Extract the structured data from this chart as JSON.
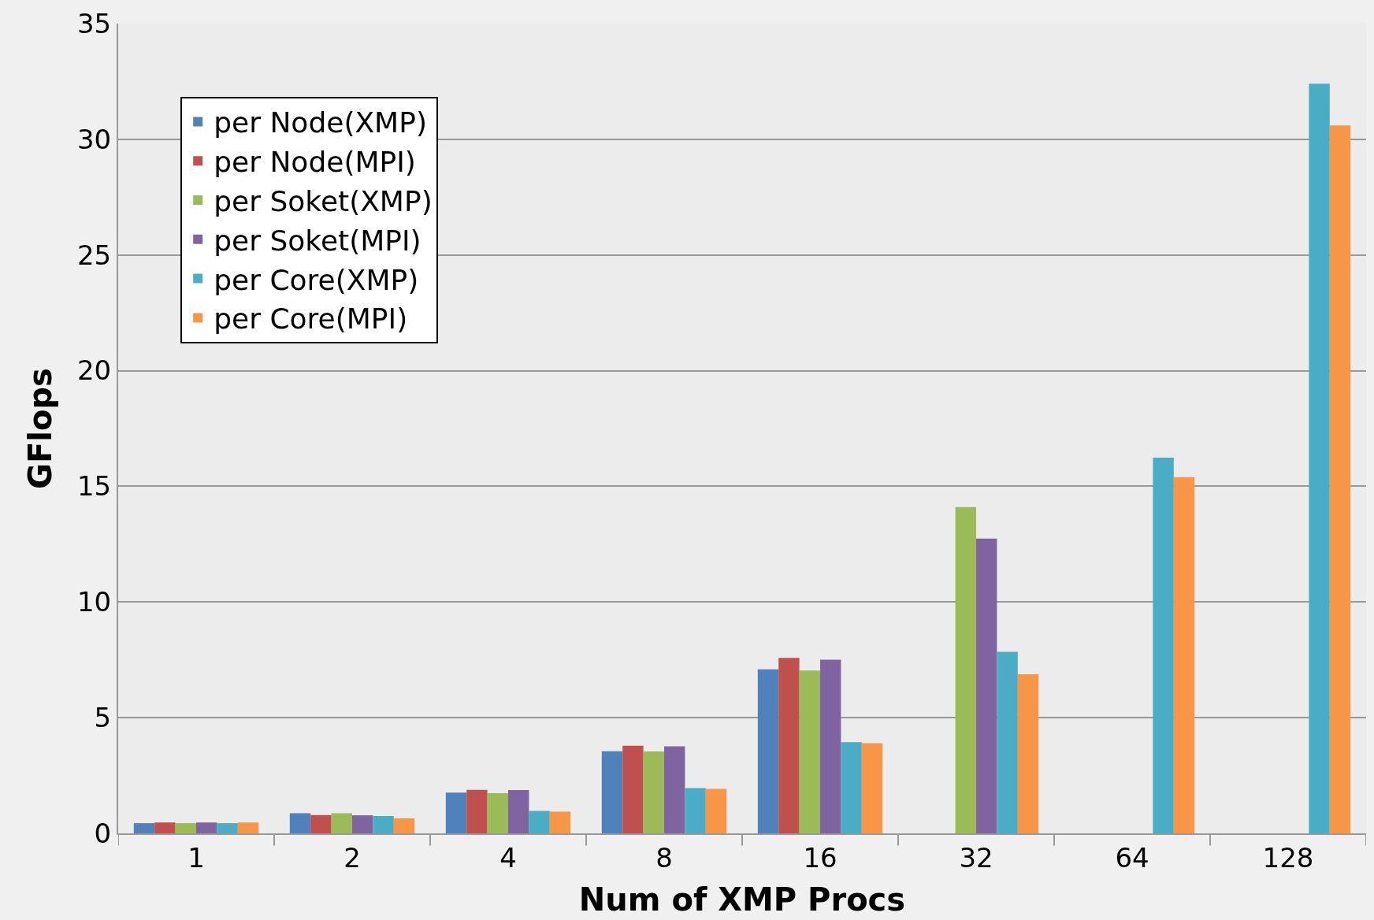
{
  "chart_data": {
    "type": "bar",
    "xlabel": "Num of XMP Procs",
    "ylabel": "GFlops",
    "categories": [
      "1",
      "2",
      "4",
      "8",
      "16",
      "32",
      "64",
      "128"
    ],
    "series": [
      {
        "name": "per Node(XMP)",
        "color": "#4f81bd",
        "values": [
          0.44,
          0.87,
          1.76,
          3.55,
          7.09,
          null,
          null,
          null
        ]
      },
      {
        "name": "per Node(MPI)",
        "color": "#c0504d",
        "values": [
          0.47,
          0.79,
          1.88,
          3.79,
          7.58,
          null,
          null,
          null
        ]
      },
      {
        "name": "per Soket(XMP)",
        "color": "#9bbb59",
        "values": [
          0.44,
          0.87,
          1.74,
          3.54,
          7.04,
          14.1,
          null,
          null
        ]
      },
      {
        "name": "per Soket(MPI)",
        "color": "#8064a2",
        "values": [
          0.47,
          0.78,
          1.87,
          3.76,
          7.51,
          12.74,
          null,
          null
        ]
      },
      {
        "name": "per Core(XMP)",
        "color": "#4bacc6",
        "values": [
          0.44,
          0.75,
          0.97,
          1.96,
          3.94,
          7.85,
          16.24,
          32.4
        ]
      },
      {
        "name": "per Core(MPI)",
        "color": "#f79646",
        "values": [
          0.47,
          0.65,
          0.94,
          1.92,
          3.9,
          6.88,
          15.4,
          30.6
        ]
      }
    ],
    "ylim": [
      0,
      35
    ],
    "yticks": [
      0,
      5,
      10,
      15,
      20,
      25,
      30,
      35
    ],
    "grid": "y",
    "legend": "top left"
  }
}
